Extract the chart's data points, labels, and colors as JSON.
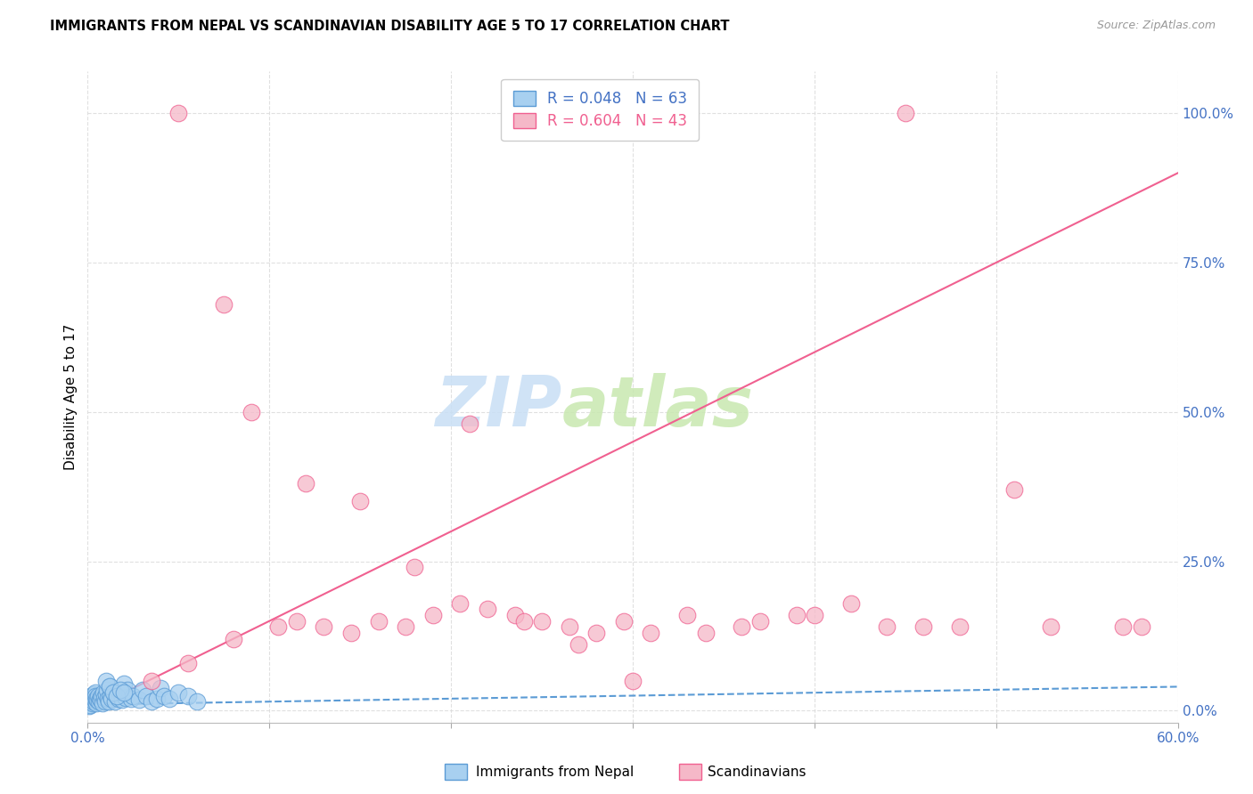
{
  "title": "IMMIGRANTS FROM NEPAL VS SCANDINAVIAN DISABILITY AGE 5 TO 17 CORRELATION CHART",
  "source": "Source: ZipAtlas.com",
  "ylabel": "Disability Age 5 to 17",
  "ytick_values": [
    0,
    25,
    50,
    75,
    100
  ],
  "xtick_values": [
    0,
    10,
    20,
    30,
    40,
    50,
    60
  ],
  "xmin": 0,
  "xmax": 60,
  "ymin": -2,
  "ymax": 107,
  "legend_r1": "R = 0.048",
  "legend_n1": "N = 63",
  "legend_r2": "R = 0.604",
  "legend_n2": "N = 43",
  "color_nepal": "#a8d0f0",
  "color_scand": "#f5b8c8",
  "color_nepal_edge": "#5b9bd5",
  "color_scand_edge": "#f06090",
  "color_nepal_line": "#5b9bd5",
  "color_scand_line": "#f06090",
  "axis_label_color": "#4472c4",
  "nepal_x": [
    0.05,
    0.08,
    0.1,
    0.12,
    0.15,
    0.18,
    0.2,
    0.22,
    0.25,
    0.28,
    0.3,
    0.32,
    0.35,
    0.38,
    0.4,
    0.42,
    0.45,
    0.48,
    0.5,
    0.55,
    0.6,
    0.65,
    0.7,
    0.75,
    0.8,
    0.85,
    0.9,
    0.95,
    1.0,
    1.05,
    1.1,
    1.15,
    1.2,
    1.25,
    1.3,
    1.4,
    1.5,
    1.6,
    1.7,
    1.8,
    1.9,
    2.0,
    2.1,
    2.2,
    2.4,
    2.5,
    2.8,
    3.0,
    3.2,
    3.5,
    3.8,
    4.0,
    4.2,
    4.5,
    5.0,
    5.5,
    6.0,
    1.0,
    1.2,
    1.4,
    1.6,
    1.8,
    2.0
  ],
  "nepal_y": [
    1.2,
    0.8,
    1.5,
    2.0,
    1.0,
    1.8,
    2.5,
    1.5,
    2.0,
    1.2,
    2.8,
    1.5,
    2.2,
    1.8,
    3.0,
    2.5,
    1.2,
    2.0,
    1.8,
    2.5,
    1.5,
    2.0,
    1.8,
    2.5,
    1.2,
    3.0,
    2.2,
    1.5,
    2.8,
    3.5,
    2.0,
    1.5,
    4.0,
    2.5,
    2.0,
    3.2,
    1.5,
    2.5,
    2.0,
    3.0,
    1.8,
    4.5,
    2.2,
    3.5,
    2.0,
    2.5,
    1.8,
    3.5,
    2.5,
    1.5,
    2.0,
    3.8,
    2.5,
    2.0,
    3.0,
    2.5,
    1.5,
    5.0,
    4.0,
    3.0,
    2.5,
    3.5,
    3.0
  ],
  "scand_x": [
    3.5,
    5.5,
    8.0,
    10.5,
    11.5,
    13.0,
    14.5,
    16.0,
    17.5,
    19.0,
    20.5,
    22.0,
    23.5,
    25.0,
    26.5,
    28.0,
    29.5,
    31.0,
    33.0,
    36.0,
    39.0,
    42.0,
    46.0,
    51.0,
    57.0,
    5.0,
    7.5,
    9.0,
    12.0,
    15.0,
    18.0,
    21.0,
    24.0,
    27.0,
    30.0,
    34.0,
    37.0,
    40.0,
    44.0,
    48.0,
    53.0,
    58.0,
    45.0
  ],
  "scand_y": [
    5.0,
    8.0,
    12.0,
    14.0,
    15.0,
    14.0,
    13.0,
    15.0,
    14.0,
    16.0,
    18.0,
    17.0,
    16.0,
    15.0,
    14.0,
    13.0,
    15.0,
    13.0,
    16.0,
    14.0,
    16.0,
    18.0,
    14.0,
    37.0,
    14.0,
    100.0,
    68.0,
    50.0,
    38.0,
    35.0,
    24.0,
    48.0,
    15.0,
    11.0,
    5.0,
    13.0,
    15.0,
    16.0,
    14.0,
    14.0,
    14.0,
    14.0,
    100.0
  ],
  "nepal_trend_x": [
    0,
    60
  ],
  "nepal_trend_y": [
    1.0,
    4.0
  ],
  "scand_trend_x": [
    0,
    60
  ],
  "scand_trend_y": [
    0,
    90
  ],
  "watermark_zip_color": "#c8dff5",
  "watermark_atlas_color": "#c8e8b0"
}
